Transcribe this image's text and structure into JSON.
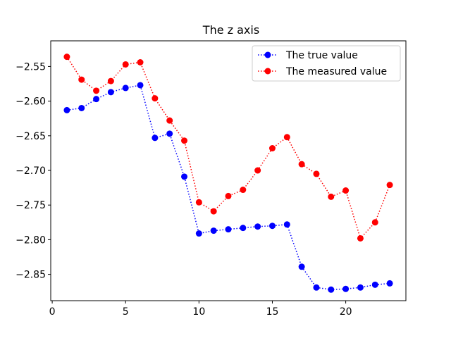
{
  "chart_data": {
    "type": "line",
    "title": "The z axis",
    "xlabel": "",
    "ylabel": "",
    "xlim": [
      -0.1,
      24.1
    ],
    "ylim": [
      -2.888,
      -2.513
    ],
    "x_ticks": [
      0,
      5,
      10,
      15,
      20
    ],
    "y_ticks": [
      -2.55,
      -2.6,
      -2.65,
      -2.7,
      -2.75,
      -2.8,
      -2.85
    ],
    "x_tick_labels": [
      "0",
      "5",
      "10",
      "15",
      "20"
    ],
    "y_tick_labels": [
      "−2.55",
      "−2.60",
      "−2.65",
      "−2.70",
      "−2.75",
      "−2.80",
      "−2.85"
    ],
    "grid": false,
    "legend_position": "top-right",
    "x": [
      1,
      2,
      3,
      4,
      5,
      6,
      7,
      8,
      9,
      10,
      11,
      12,
      13,
      14,
      15,
      16,
      17,
      18,
      19,
      20,
      21,
      22,
      23
    ],
    "series": [
      {
        "name": "The true value",
        "color": "#0000ff",
        "linestyle": "dotted",
        "marker": "circle",
        "values": [
          -2.613,
          -2.61,
          -2.597,
          -2.587,
          -2.581,
          -2.577,
          -2.653,
          -2.647,
          -2.709,
          -2.791,
          -2.787,
          -2.785,
          -2.783,
          -2.781,
          -2.78,
          -2.778,
          -2.839,
          -2.869,
          -2.872,
          -2.871,
          -2.869,
          -2.865,
          -2.863
        ]
      },
      {
        "name": "The measured value",
        "color": "#ff0000",
        "linestyle": "dotted",
        "marker": "circle",
        "values": [
          -2.536,
          -2.569,
          -2.585,
          -2.571,
          -2.547,
          -2.544,
          -2.596,
          -2.628,
          -2.657,
          -2.746,
          -2.759,
          -2.737,
          -2.728,
          -2.7,
          -2.668,
          -2.652,
          -2.691,
          -2.705,
          -2.738,
          -2.729,
          -2.798,
          -2.775,
          -2.721
        ]
      }
    ]
  }
}
